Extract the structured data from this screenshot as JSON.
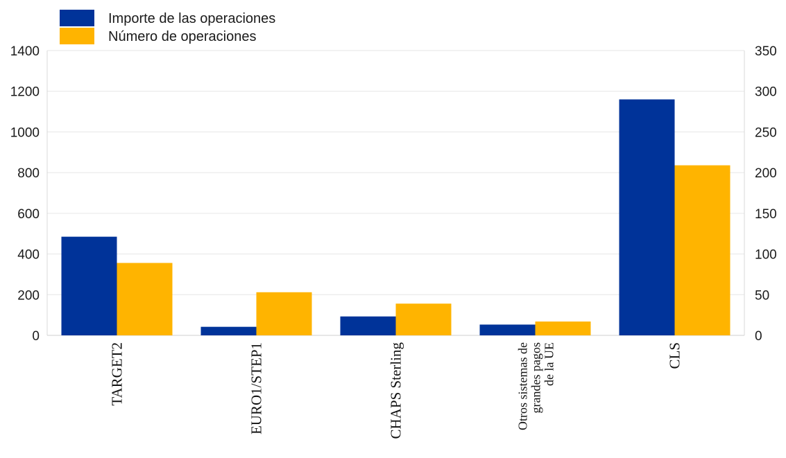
{
  "chart_data": {
    "type": "bar",
    "categories": [
      [
        "TARGET2"
      ],
      [
        "EURO1/STEP1"
      ],
      [
        "CHAPS Sterling"
      ],
      [
        "Otros sistemas de",
        "grandes pagos",
        "de la UE"
      ],
      [
        "CLS"
      ]
    ],
    "series": [
      {
        "name": "Importe de las operaciones",
        "axis": "left",
        "color": "#003399",
        "values": [
          485,
          42,
          93,
          53,
          1160
        ]
      },
      {
        "name": "Número de operaciones",
        "axis": "right",
        "color": "#FFB400",
        "values": [
          89,
          53,
          39,
          17,
          209
        ]
      }
    ],
    "y_left": {
      "min": 0,
      "max": 1400,
      "ticks": [
        0,
        200,
        400,
        600,
        800,
        1000,
        1200,
        1400
      ]
    },
    "y_right": {
      "min": 0,
      "max": 350,
      "ticks": [
        0,
        50,
        100,
        150,
        200,
        250,
        300,
        350
      ]
    },
    "grid": true,
    "legend_position": "top-left"
  }
}
